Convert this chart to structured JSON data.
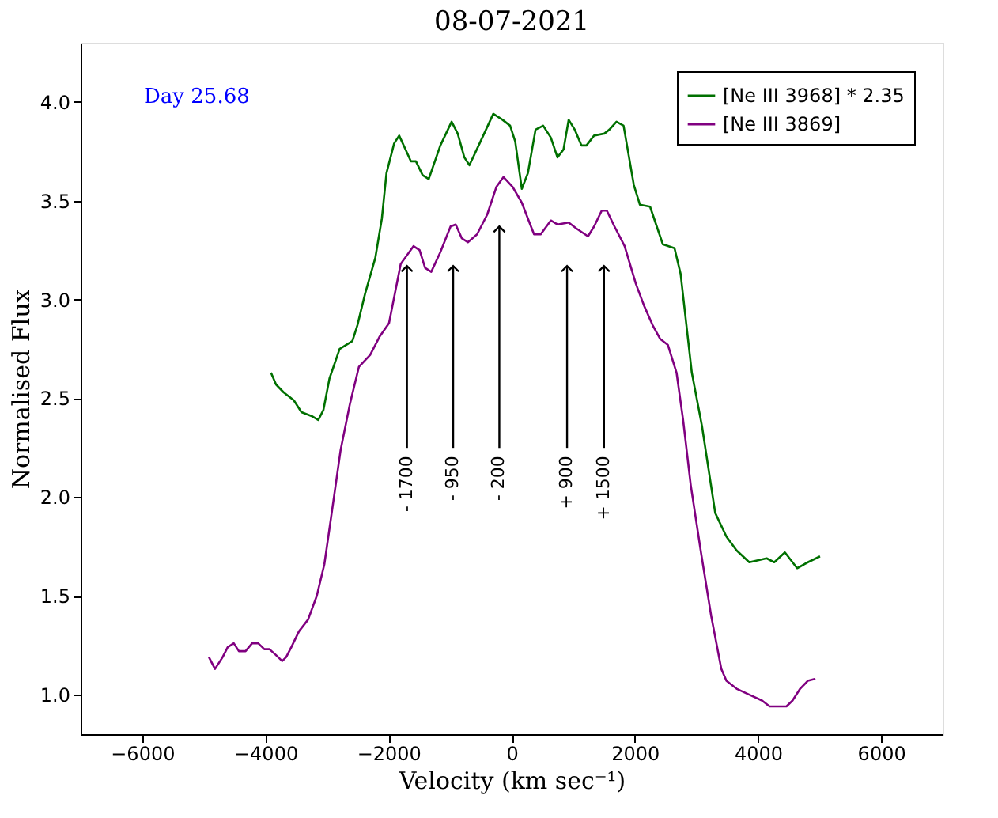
{
  "chart_data": {
    "type": "line",
    "title": "08-07-2021",
    "xlabel": "Velocity (km sec⁻¹)",
    "ylabel": "Normalised Flux",
    "xlim": [
      -7000,
      7000
    ],
    "xticks": [
      {
        "value": -6000,
        "label": "−6000"
      },
      {
        "value": -4000,
        "label": "−4000"
      },
      {
        "value": -2000,
        "label": "−2000"
      },
      0,
      2000,
      4000,
      6000
    ],
    "ylim": [
      0.8,
      4.3
    ],
    "yticks": [
      {
        "value": 1,
        "label": "1.0"
      },
      1.5,
      {
        "value": 2,
        "label": "2.0"
      },
      2.5,
      {
        "value": 3,
        "label": "3.0"
      },
      3.5,
      {
        "value": 4,
        "label": "4.0"
      }
    ],
    "legend": "top right",
    "annotations": [
      "Day 25.68",
      {
        "text": "- 1700",
        "x": -1700,
        "y": 3.17
      },
      {
        "text": "- 950",
        "x": -950,
        "y": 3.17
      },
      {
        "text": "- 200",
        "x": -200,
        "y": 3.37
      },
      {
        "text": "+ 900",
        "x": 900,
        "y": 3.17
      },
      {
        "text": "+ 1500",
        "x": 1500,
        "y": 3.17
      }
    ],
    "series": [
      {
        "name": "[Ne III 3968] * 2.35",
        "color": "#007000",
        "x": [
          -3909,
          -3827,
          -3703,
          -3538,
          -3414,
          -3248,
          -3141,
          -3058,
          -2959,
          -2794,
          -2587,
          -2505,
          -2380,
          -2215,
          -2108,
          -2033,
          -1909,
          -1827,
          -1637,
          -1555,
          -1446,
          -1347,
          -1158,
          -975,
          -876,
          -769,
          -686,
          -521,
          -298,
          -149,
          -25,
          58,
          165,
          264,
          388,
          512,
          636,
          744,
          843,
          926,
          1025,
          1133,
          1215,
          1339,
          1505,
          1587,
          1703,
          1818,
          1984,
          2083,
          2248,
          2455,
          2645,
          2744,
          2926,
          3091,
          3306,
          3488,
          3653,
          3860,
          4141,
          4265,
          4438,
          4637,
          4810,
          5009
        ],
        "values": [
          2.63,
          2.57,
          2.53,
          2.49,
          2.43,
          2.41,
          2.39,
          2.44,
          2.6,
          2.75,
          2.79,
          2.87,
          3.03,
          3.21,
          3.41,
          3.64,
          3.79,
          3.83,
          3.7,
          3.7,
          3.63,
          3.61,
          3.78,
          3.9,
          3.84,
          3.72,
          3.68,
          3.79,
          3.94,
          3.91,
          3.88,
          3.8,
          3.56,
          3.64,
          3.86,
          3.88,
          3.82,
          3.72,
          3.76,
          3.91,
          3.86,
          3.78,
          3.78,
          3.83,
          3.84,
          3.86,
          3.9,
          3.88,
          3.58,
          3.48,
          3.47,
          3.28,
          3.26,
          3.13,
          2.63,
          2.36,
          1.92,
          1.8,
          1.73,
          1.67,
          1.69,
          1.67,
          1.72,
          1.64,
          1.67,
          1.7
        ]
      },
      {
        "name": "[Ne III 3869]",
        "color": "#800080",
        "x": [
          -4917,
          -4818,
          -4694,
          -4612,
          -4513,
          -4430,
          -4322,
          -4215,
          -4116,
          -4017,
          -3934,
          -3827,
          -3727,
          -3662,
          -3579,
          -3455,
          -3306,
          -3165,
          -3042,
          -2918,
          -2777,
          -2628,
          -2480,
          -2298,
          -2149,
          -1992,
          -1802,
          -1595,
          -1496,
          -1405,
          -1306,
          -1158,
          -992,
          -909,
          -810,
          -711,
          -562,
          -397,
          -248,
          -132,
          17,
          165,
          264,
          364,
          471,
          636,
          744,
          926,
          1050,
          1240,
          1339,
          1463,
          1546,
          1670,
          1835,
          2017,
          2149,
          2290,
          2414,
          2538,
          2678,
          2785,
          2909,
          3075,
          3240,
          3405,
          3488,
          3653,
          3860,
          4066,
          4190,
          4356,
          4463,
          4562,
          4686,
          4810,
          4934
        ],
        "values": [
          1.19,
          1.13,
          1.19,
          1.24,
          1.26,
          1.22,
          1.22,
          1.26,
          1.26,
          1.23,
          1.23,
          1.2,
          1.17,
          1.19,
          1.24,
          1.32,
          1.38,
          1.5,
          1.66,
          1.93,
          2.24,
          2.47,
          2.66,
          2.72,
          2.81,
          2.88,
          3.18,
          3.27,
          3.25,
          3.16,
          3.14,
          3.24,
          3.37,
          3.38,
          3.31,
          3.29,
          3.33,
          3.43,
          3.57,
          3.62,
          3.57,
          3.49,
          3.41,
          3.33,
          3.33,
          3.4,
          3.38,
          3.39,
          3.36,
          3.32,
          3.37,
          3.45,
          3.45,
          3.37,
          3.27,
          3.08,
          2.97,
          2.87,
          2.8,
          2.77,
          2.63,
          2.39,
          2.06,
          1.72,
          1.4,
          1.13,
          1.07,
          1.03,
          1.0,
          0.97,
          0.94,
          0.94,
          0.94,
          0.97,
          1.03,
          1.07,
          1.08
        ]
      }
    ]
  }
}
